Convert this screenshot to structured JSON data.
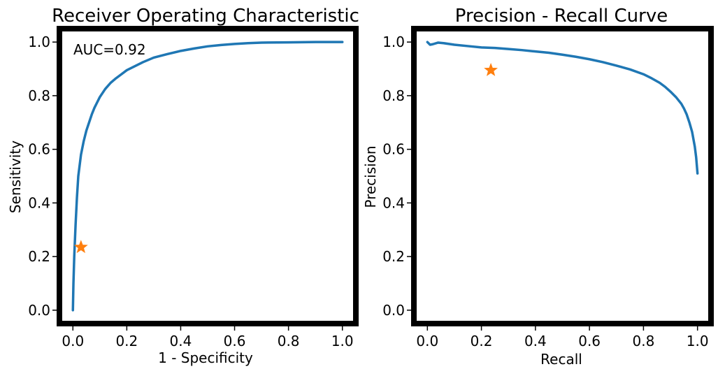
{
  "chart_data": [
    {
      "type": "line",
      "title": "Receiver Operating Characteristic",
      "xlabel": "1 - Specificity",
      "ylabel": "Sensitivity",
      "xlim": [
        -0.05,
        1.05
      ],
      "ylim": [
        -0.05,
        1.05
      ],
      "xticks": [
        0.0,
        0.2,
        0.4,
        0.6,
        0.8,
        1.0
      ],
      "yticks": [
        0.0,
        0.2,
        0.4,
        0.6,
        0.8,
        1.0
      ],
      "xtick_labels": [
        "0.0",
        "0.2",
        "0.4",
        "0.6",
        "0.8",
        "1.0"
      ],
      "ytick_labels": [
        "0.0",
        "0.2",
        "0.4",
        "0.6",
        "0.8",
        "1.0"
      ],
      "grid": false,
      "annotation": "AUC=0.92",
      "series": [
        {
          "color": "#1f77b4",
          "x": [
            0.0,
            0.002,
            0.005,
            0.01,
            0.015,
            0.02,
            0.03,
            0.04,
            0.05,
            0.06,
            0.07,
            0.08,
            0.09,
            0.1,
            0.12,
            0.14,
            0.16,
            0.18,
            0.2,
            0.23,
            0.26,
            0.3,
            0.35,
            0.4,
            0.45,
            0.5,
            0.55,
            0.6,
            0.65,
            0.7,
            0.8,
            0.9,
            1.0
          ],
          "y": [
            0.0,
            0.1,
            0.2,
            0.32,
            0.42,
            0.5,
            0.58,
            0.63,
            0.67,
            0.7,
            0.73,
            0.755,
            0.775,
            0.795,
            0.825,
            0.848,
            0.865,
            0.88,
            0.895,
            0.91,
            0.925,
            0.942,
            0.955,
            0.967,
            0.976,
            0.984,
            0.989,
            0.993,
            0.996,
            0.998,
            0.999,
            1.0,
            1.0
          ]
        }
      ],
      "markers": [
        {
          "x": 0.03,
          "y": 0.235,
          "shape": "star",
          "color": "#ff7f0e"
        }
      ]
    },
    {
      "type": "line",
      "title": "Precision - Recall Curve",
      "xlabel": "Recall",
      "ylabel": "Precision",
      "xlim": [
        -0.05,
        1.05
      ],
      "ylim": [
        -0.05,
        1.05
      ],
      "xticks": [
        0.0,
        0.2,
        0.4,
        0.6,
        0.8,
        1.0
      ],
      "yticks": [
        0.0,
        0.2,
        0.4,
        0.6,
        0.8,
        1.0
      ],
      "xtick_labels": [
        "0.0",
        "0.2",
        "0.4",
        "0.6",
        "0.8",
        "1.0"
      ],
      "ytick_labels": [
        "0.0",
        "0.2",
        "0.4",
        "0.6",
        "0.8",
        "1.0"
      ],
      "grid": false,
      "series": [
        {
          "color": "#1f77b4",
          "x": [
            0.0,
            0.01,
            0.02,
            0.04,
            0.06,
            0.1,
            0.15,
            0.2,
            0.25,
            0.3,
            0.35,
            0.4,
            0.45,
            0.5,
            0.55,
            0.6,
            0.65,
            0.7,
            0.75,
            0.8,
            0.83,
            0.86,
            0.88,
            0.9,
            0.92,
            0.94,
            0.95,
            0.96,
            0.97,
            0.98,
            0.99,
            0.995,
            1.0
          ],
          "y": [
            1.0,
            0.99,
            0.992,
            0.998,
            0.996,
            0.99,
            0.985,
            0.98,
            0.978,
            0.974,
            0.97,
            0.965,
            0.96,
            0.953,
            0.945,
            0.936,
            0.925,
            0.912,
            0.898,
            0.88,
            0.865,
            0.848,
            0.833,
            0.815,
            0.795,
            0.77,
            0.752,
            0.73,
            0.7,
            0.665,
            0.61,
            0.57,
            0.51
          ]
        }
      ],
      "markers": [
        {
          "x": 0.235,
          "y": 0.895,
          "shape": "star",
          "color": "#ff7f0e"
        }
      ]
    }
  ]
}
